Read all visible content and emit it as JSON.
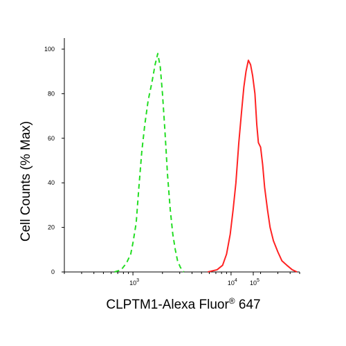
{
  "chart_data": {
    "type": "line",
    "title": "",
    "xlabel": "CLPTM1-Alexa Fluor",
    "xlabel_superscript": "®",
    "xlabel_suffix": " 647",
    "ylabel": "Cell Counts (% Max)",
    "x_scale": "log",
    "xlim": [
      200,
      50000
    ],
    "ylim": [
      0,
      100
    ],
    "x_ticks": [
      {
        "base": "10",
        "exp": "3",
        "value": 1000
      },
      {
        "base": "10",
        "exp": "4",
        "value": 10000
      },
      {
        "base": "10",
        "exp": "5",
        "value": 100000
      }
    ],
    "y_ticks": [
      "0",
      "20",
      "40",
      "60",
      "80",
      "100"
    ],
    "grid": false,
    "legend": "none",
    "series": [
      {
        "color": "#22dd22",
        "dash": "dashed",
        "points": [
          [
            650,
            0
          ],
          [
            760,
            1
          ],
          [
            860,
            4
          ],
          [
            950,
            8
          ],
          [
            1000,
            13
          ],
          [
            1080,
            22
          ],
          [
            1150,
            38
          ],
          [
            1230,
            54
          ],
          [
            1320,
            66
          ],
          [
            1430,
            77
          ],
          [
            1560,
            85
          ],
          [
            1680,
            93
          ],
          [
            1790,
            98
          ],
          [
            1900,
            92
          ],
          [
            2000,
            80
          ],
          [
            2120,
            63
          ],
          [
            2250,
            44
          ],
          [
            2400,
            28
          ],
          [
            2550,
            17
          ],
          [
            2700,
            10
          ],
          [
            2850,
            5
          ],
          [
            3050,
            2
          ],
          [
            3300,
            0
          ]
        ]
      },
      {
        "color": "#ff2222",
        "dash": "solid",
        "points": [
          [
            5800,
            0
          ],
          [
            7200,
            1
          ],
          [
            8200,
            3
          ],
          [
            9000,
            8
          ],
          [
            9800,
            17
          ],
          [
            10500,
            28
          ],
          [
            11200,
            40
          ],
          [
            12000,
            58
          ],
          [
            12800,
            72
          ],
          [
            13500,
            83
          ],
          [
            14200,
            90
          ],
          [
            15000,
            95
          ],
          [
            15800,
            93
          ],
          [
            16600,
            88
          ],
          [
            17500,
            80
          ],
          [
            18300,
            66
          ],
          [
            19000,
            58
          ],
          [
            20000,
            56
          ],
          [
            21000,
            48
          ],
          [
            22000,
            38
          ],
          [
            23500,
            28
          ],
          [
            25000,
            20
          ],
          [
            27000,
            14
          ],
          [
            30000,
            9
          ],
          [
            33000,
            5
          ],
          [
            37000,
            3
          ],
          [
            42000,
            1
          ],
          [
            47000,
            0
          ]
        ]
      }
    ]
  }
}
